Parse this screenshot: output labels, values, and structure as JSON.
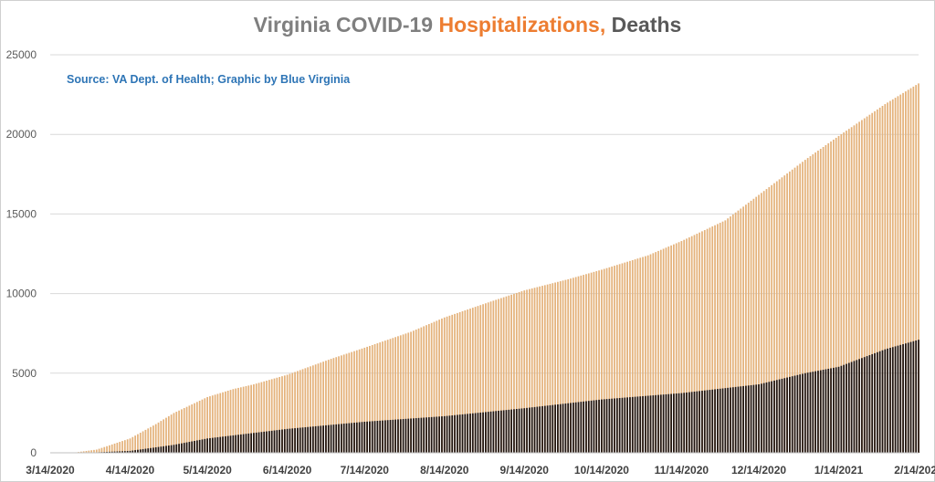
{
  "title": {
    "part1": "Virginia COVID-19 ",
    "part2": "Hospitalizations, ",
    "part3": "Deaths"
  },
  "source": "Source: VA Dept. of Health; Graphic by Blue Virginia",
  "colors": {
    "hospitalizations": "#e4b27b",
    "deaths": "#1f1410",
    "title_grey": "#7f7f7f",
    "title_orange": "#ed7d31",
    "title_dark": "#595959",
    "source_blue": "#2e75b6",
    "grid": "#d9d9d9"
  },
  "chart_data": {
    "type": "bar",
    "stacked": false,
    "x_start": "3/14/2020",
    "x_end": "2/14/2021",
    "frequency": "daily",
    "ylim": [
      0,
      25000
    ],
    "yticks": [
      0,
      5000,
      10000,
      15000,
      20000,
      25000
    ],
    "xticks": [
      "3/14/2020",
      "4/14/2020",
      "5/14/2020",
      "6/14/2020",
      "7/14/2020",
      "8/14/2020",
      "9/14/2020",
      "10/14/2020",
      "11/14/2020",
      "12/14/2020",
      "1/14/2021",
      "2/14/2021"
    ],
    "grid": true,
    "legend": "none",
    "series": [
      {
        "name": "Hospitalizations",
        "color": "#e4b27b",
        "points": [
          [
            "3/14/2020",
            0
          ],
          [
            "3/24/2020",
            30
          ],
          [
            "4/1/2020",
            200
          ],
          [
            "4/14/2020",
            900
          ],
          [
            "4/24/2020",
            1800
          ],
          [
            "5/1/2020",
            2500
          ],
          [
            "5/14/2020",
            3500
          ],
          [
            "5/24/2020",
            4000
          ],
          [
            "6/1/2020",
            4300
          ],
          [
            "6/14/2020",
            4900
          ],
          [
            "7/1/2020",
            5900
          ],
          [
            "7/14/2020",
            6600
          ],
          [
            "8/1/2020",
            7600
          ],
          [
            "8/14/2020",
            8500
          ],
          [
            "9/1/2020",
            9500
          ],
          [
            "9/14/2020",
            10200
          ],
          [
            "10/1/2020",
            10900
          ],
          [
            "10/14/2020",
            11500
          ],
          [
            "11/1/2020",
            12400
          ],
          [
            "11/14/2020",
            13300
          ],
          [
            "12/1/2020",
            14600
          ],
          [
            "12/14/2020",
            16200
          ],
          [
            "1/1/2021",
            18400
          ],
          [
            "1/14/2021",
            19900
          ],
          [
            "2/1/2021",
            21900
          ],
          [
            "2/14/2021",
            23200
          ]
        ]
      },
      {
        "name": "Deaths",
        "color": "#1f1410",
        "points": [
          [
            "3/14/2020",
            0
          ],
          [
            "4/1/2020",
            30
          ],
          [
            "4/14/2020",
            120
          ],
          [
            "5/1/2020",
            500
          ],
          [
            "5/14/2020",
            900
          ],
          [
            "6/14/2020",
            1500
          ],
          [
            "7/14/2020",
            1950
          ],
          [
            "8/14/2020",
            2300
          ],
          [
            "9/14/2020",
            2800
          ],
          [
            "10/14/2020",
            3350
          ],
          [
            "11/14/2020",
            3750
          ],
          [
            "12/14/2020",
            4300
          ],
          [
            "1/1/2021",
            5000
          ],
          [
            "1/14/2021",
            5400
          ],
          [
            "2/1/2021",
            6500
          ],
          [
            "2/14/2021",
            7100
          ]
        ]
      }
    ]
  }
}
